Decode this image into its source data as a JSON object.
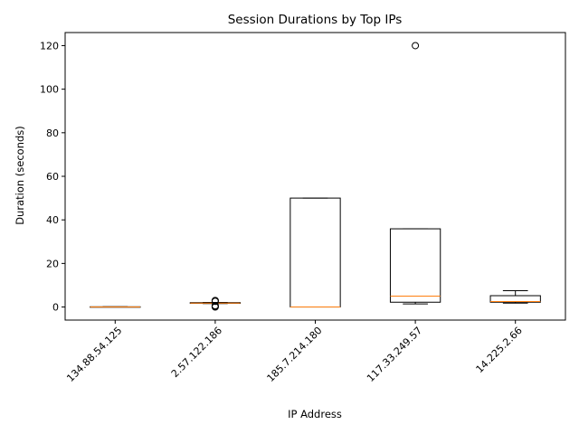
{
  "chart_data": {
    "type": "box",
    "title": "Session Durations by Top IPs",
    "xlabel": "IP Address",
    "ylabel": "Duration (seconds)",
    "ylim": [
      -6,
      126
    ],
    "yticks": [
      0,
      20,
      40,
      60,
      80,
      100,
      120
    ],
    "categories": [
      "134.88.54.125",
      "2.57.122.186",
      "185.7.214.180",
      "117.33.249.57",
      "14.225.2.66"
    ],
    "boxes": [
      {
        "category": "134.88.54.125",
        "whisker_low": 0.0,
        "q1": 0.0,
        "median": 0.0,
        "q3": 0.1,
        "whisker_high": 0.1,
        "fliers": []
      },
      {
        "category": "2.57.122.186",
        "whisker_low": 1.6,
        "q1": 1.7,
        "median": 1.8,
        "q3": 2.0,
        "whisker_high": 2.1,
        "fliers": [
          0.0,
          0.3,
          0.6,
          2.6,
          3.0
        ]
      },
      {
        "category": "185.7.214.180",
        "whisker_low": 0.0,
        "q1": 0.0,
        "median": 0.0,
        "q3": 50.0,
        "whisker_high": 50.0,
        "fliers": []
      },
      {
        "category": "117.33.249.57",
        "whisker_low": 1.4,
        "q1": 2.2,
        "median": 5.0,
        "q3": 35.9,
        "whisker_high": 35.9,
        "fliers": [
          120.0
        ]
      },
      {
        "category": "14.225.2.66",
        "whisker_low": 1.8,
        "q1": 2.2,
        "median": 2.5,
        "q3": 5.2,
        "whisker_high": 7.5,
        "fliers": []
      }
    ],
    "box_color": "#000000",
    "median_color": "#ff7f0e",
    "grid": false,
    "legend": "none"
  }
}
